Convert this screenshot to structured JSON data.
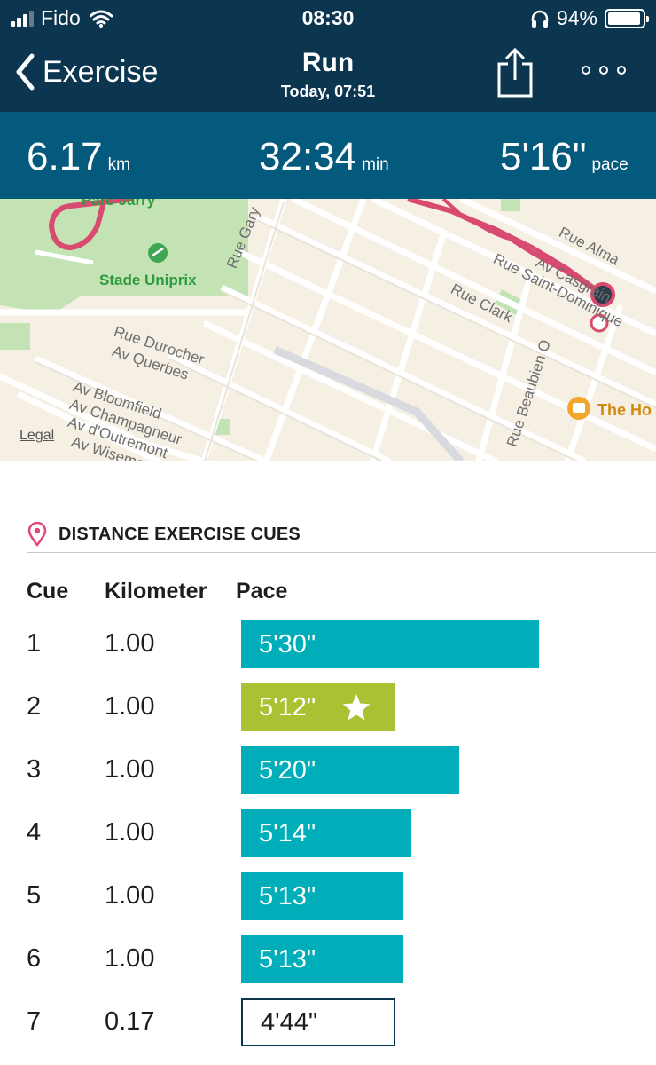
{
  "status_bar": {
    "carrier": "Fido",
    "time": "08:30",
    "battery": "94%",
    "battery_level": 0.94,
    "signal_bars": 3
  },
  "nav": {
    "back_label": "Exercise",
    "title": "Run",
    "subtitle": "Today, 07:51",
    "icons": {
      "back": "chevron-left-icon",
      "share": "share-icon",
      "more": "more-icon"
    }
  },
  "stats": {
    "distance": {
      "value": "6.17",
      "unit": "km"
    },
    "duration": {
      "value": "32:34",
      "unit": "min"
    },
    "pace": {
      "value": "5'16\"",
      "unit": "pace"
    }
  },
  "map": {
    "labels": {
      "parc_jarry": "Parc Jarry",
      "stade": "Stade Uniprix",
      "rue_gary": "Rue Gary",
      "rue_alma": "Rue Alma",
      "av_casgrain": "Av Casgrain",
      "rue_saint_dominique": "Rue Saint-Dominique",
      "rue_clark": "Rue Clark",
      "rue_durocher": "Rue Durocher",
      "av_querbes": "Av Querbes",
      "av_bloomfield": "Av Bloomfield",
      "av_champagneur": "Av Champagneur",
      "av_doutremont": "Av d'Outremont",
      "av_wiseman": "Av Wiseman",
      "rue_beaubien": "Rue Beaubien O",
      "the_hotel": "The Ho"
    },
    "legal": "Legal",
    "colors": {
      "route": "#d84a6f",
      "park": "#c4e3b5",
      "land": "#f6efe3"
    }
  },
  "cues": {
    "title": "DISTANCE EXERCISE CUES",
    "icon": "location-pin-icon",
    "headers": {
      "cue": "Cue",
      "kilometer": "Kilometer",
      "pace": "Pace"
    },
    "rows": [
      {
        "cue": "1",
        "km": "1.00",
        "pace": "5'30\"",
        "pace_seconds": 330,
        "fastest": false,
        "partial": false
      },
      {
        "cue": "2",
        "km": "1.00",
        "pace": "5'12\"",
        "pace_seconds": 312,
        "fastest": true,
        "partial": false
      },
      {
        "cue": "3",
        "km": "1.00",
        "pace": "5'20\"",
        "pace_seconds": 320,
        "fastest": false,
        "partial": false
      },
      {
        "cue": "4",
        "km": "1.00",
        "pace": "5'14\"",
        "pace_seconds": 314,
        "fastest": false,
        "partial": false
      },
      {
        "cue": "5",
        "km": "1.00",
        "pace": "5'13\"",
        "pace_seconds": 313,
        "fastest": false,
        "partial": false
      },
      {
        "cue": "6",
        "km": "1.00",
        "pace": "5'13\"",
        "pace_seconds": 313,
        "fastest": false,
        "partial": false
      },
      {
        "cue": "7",
        "km": "0.17",
        "pace": "4'44\"",
        "pace_seconds": 284,
        "fastest": false,
        "partial": true
      }
    ],
    "colors": {
      "normal": "#00aeb9",
      "fastest": "#a9c233",
      "star": "#ffffff",
      "pin": "#e0457b"
    }
  }
}
